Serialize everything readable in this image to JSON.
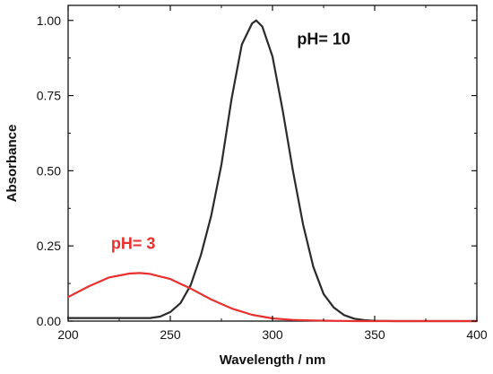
{
  "chart_data": {
    "type": "line",
    "xlabel": "Wavelength / nm",
    "ylabel": "Absorbance",
    "xlim": [
      200,
      400
    ],
    "ylim": [
      0,
      1.05
    ],
    "x_ticks": [
      "200",
      "250",
      "300",
      "350",
      "400"
    ],
    "y_ticks": [
      "0.00",
      "0.25",
      "0.50",
      "0.75",
      "1.00"
    ],
    "grid": false,
    "series": [
      {
        "color": "#2b2b2b",
        "x": [
          200,
          210,
          220,
          230,
          235,
          240,
          245,
          250,
          255,
          260,
          265,
          270,
          275,
          280,
          285,
          290,
          292,
          295,
          300,
          305,
          310,
          315,
          320,
          325,
          330,
          335,
          340,
          345,
          350,
          360,
          370,
          380,
          390,
          400
        ],
        "y": [
          0.01,
          0.01,
          0.01,
          0.01,
          0.01,
          0.01,
          0.015,
          0.03,
          0.06,
          0.12,
          0.22,
          0.35,
          0.52,
          0.74,
          0.92,
          0.99,
          1.0,
          0.98,
          0.88,
          0.7,
          0.5,
          0.32,
          0.18,
          0.09,
          0.045,
          0.02,
          0.008,
          0.003,
          0.001,
          0.0,
          0.0,
          0.0,
          0.0,
          0.0
        ]
      },
      {
        "color": "#e8312f",
        "x": [
          200,
          210,
          220,
          230,
          235,
          240,
          250,
          260,
          270,
          280,
          290,
          300,
          310,
          320,
          330,
          340,
          350,
          360,
          380,
          400
        ],
        "y": [
          0.08,
          0.115,
          0.145,
          0.158,
          0.16,
          0.157,
          0.14,
          0.108,
          0.072,
          0.042,
          0.021,
          0.009,
          0.004,
          0.002,
          0.001,
          0.0,
          0.0,
          0.0,
          0.0,
          0.0
        ]
      }
    ],
    "annotations": [
      {
        "text": "pH= 10",
        "color": "#111111"
      },
      {
        "text": "pH= 3",
        "color": "#e8312f"
      }
    ]
  }
}
